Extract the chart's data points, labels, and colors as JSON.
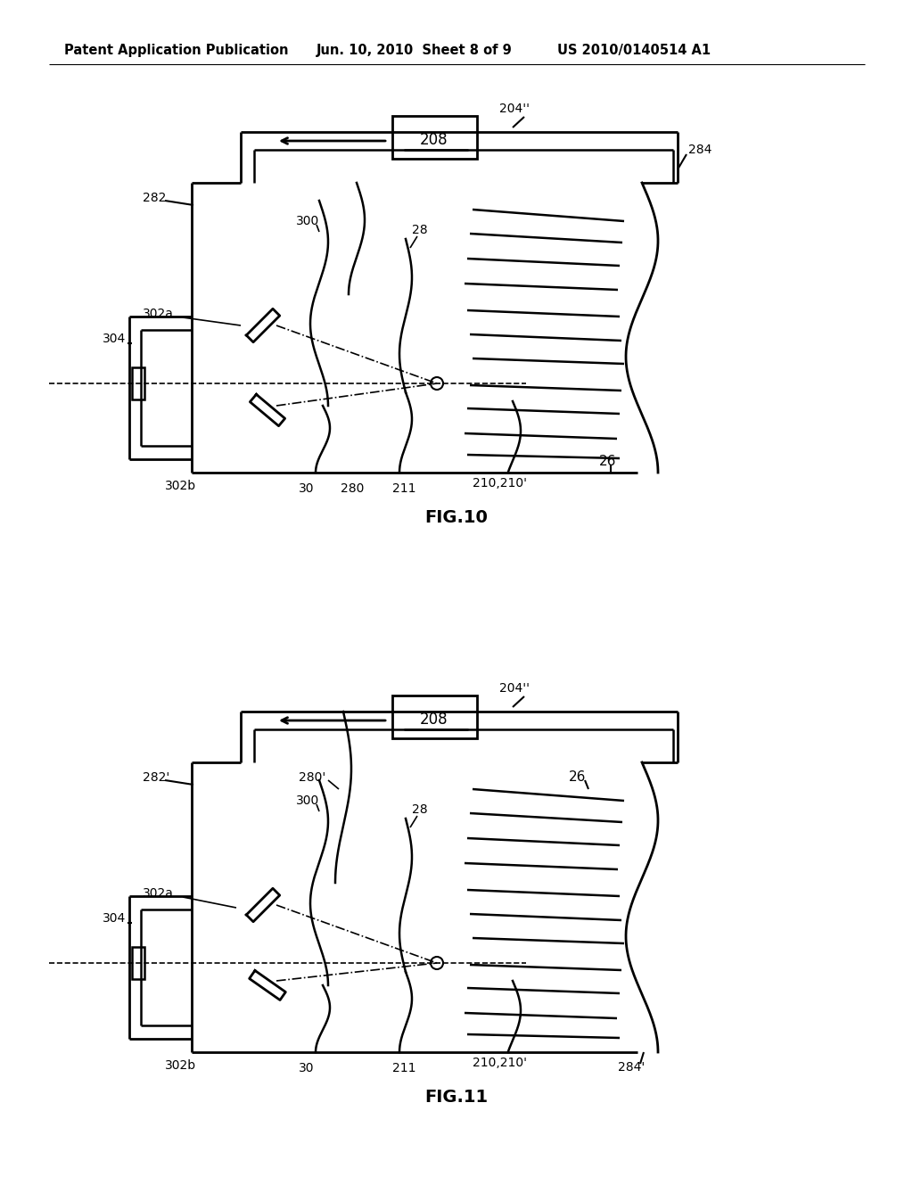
{
  "bg_color": "#ffffff",
  "header_text": "Patent Application Publication",
  "header_date": "Jun. 10, 2010  Sheet 8 of 9",
  "header_patent": "US 2010/0140514 A1",
  "fig10_title": "FIG.10",
  "fig11_title": "FIG.11"
}
